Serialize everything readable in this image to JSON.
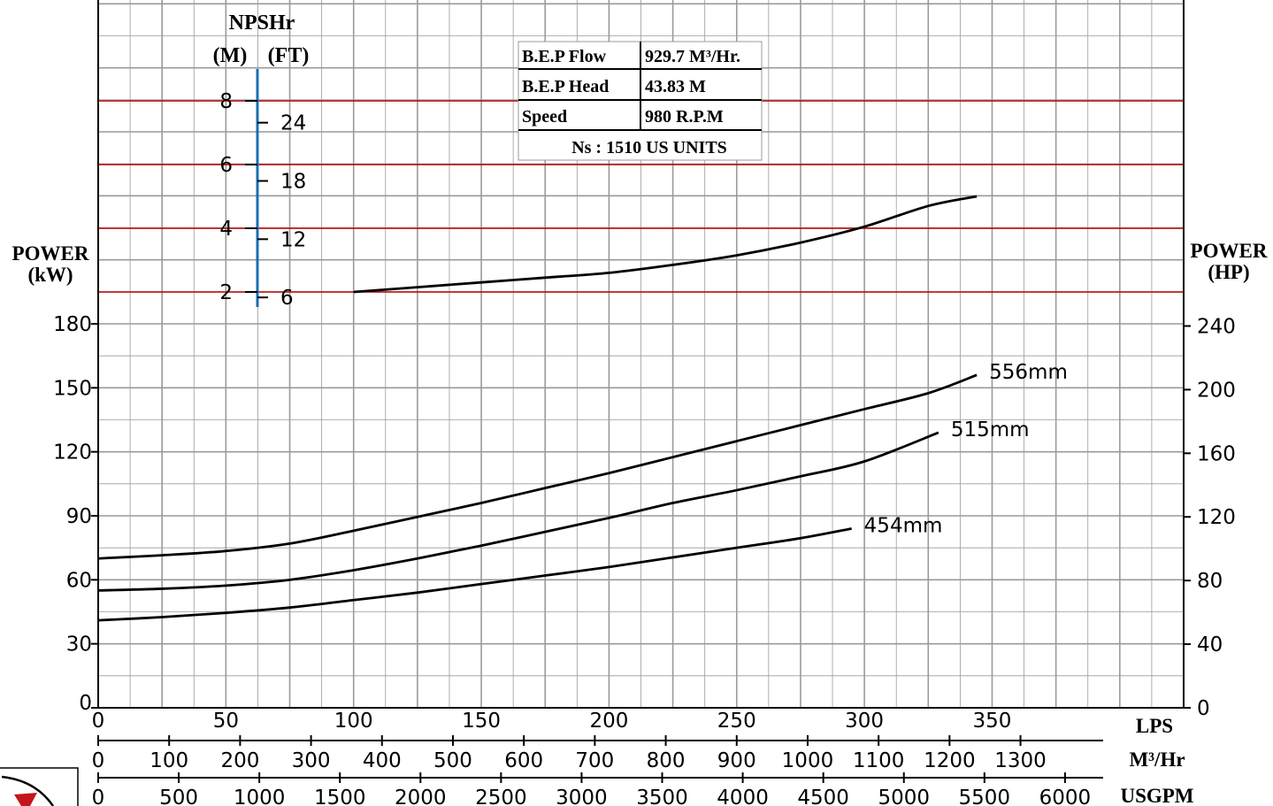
{
  "chart_data": {
    "type": "line",
    "x_unit": "LPS",
    "x_ticks": [
      0,
      50,
      100,
      150,
      200,
      250,
      300,
      350
    ],
    "xlim": [
      0,
      425
    ],
    "y_left_label": [
      "POWER",
      "(kW)"
    ],
    "y_left_ticks": [
      0,
      30,
      60,
      90,
      120,
      150,
      180
    ],
    "y_right_label": [
      "POWER",
      "(HP)"
    ],
    "y_right_ticks": [
      0,
      40,
      80,
      120,
      160,
      200,
      240
    ],
    "ylim_kw": [
      0,
      180
    ],
    "grid": true,
    "series": [
      {
        "name": "556mm",
        "x": [
          0,
          25,
          50,
          75,
          100,
          125,
          150,
          175,
          200,
          225,
          250,
          275,
          300,
          325,
          344
        ],
        "values": [
          70,
          71.5,
          73.5,
          77,
          83,
          89.5,
          96,
          103,
          110,
          117.5,
          125,
          132.5,
          140,
          147.5,
          156
        ]
      },
      {
        "name": "515mm",
        "x": [
          0,
          25,
          50,
          75,
          100,
          125,
          150,
          175,
          200,
          225,
          250,
          275,
          300,
          329
        ],
        "values": [
          55,
          55.8,
          57.3,
          60,
          64.5,
          70,
          76,
          82.5,
          89,
          96,
          102,
          108.5,
          115.5,
          129
        ]
      },
      {
        "name": "454mm",
        "x": [
          0,
          25,
          50,
          75,
          100,
          125,
          150,
          175,
          200,
          225,
          250,
          275,
          295
        ],
        "values": [
          41,
          42.5,
          44.5,
          47,
          50.5,
          54,
          58,
          62,
          66,
          70.5,
          75,
          79.5,
          84
        ]
      }
    ],
    "npshr": {
      "title": "NPSHr",
      "units": [
        "(M)",
        "(FT)"
      ],
      "m_ticks": [
        2,
        4,
        6,
        8
      ],
      "ft_ticks": [
        6,
        12,
        18,
        24
      ],
      "curve": {
        "x": [
          100,
          125,
          150,
          175,
          200,
          225,
          250,
          275,
          300,
          325,
          344
        ],
        "m": [
          2.0,
          2.15,
          2.3,
          2.45,
          2.6,
          2.85,
          3.15,
          3.55,
          4.05,
          4.7,
          5.0
        ]
      }
    },
    "bep_table": {
      "rows": [
        [
          "B.E.P Flow",
          "929.7 M³/Hr."
        ],
        [
          "B.E.P Head",
          "43.83 M"
        ],
        [
          "Speed",
          "980 R.P.M"
        ]
      ],
      "footer": "Ns : 1510 US UNITS"
    },
    "secondary_axes": [
      {
        "unit": "M³/Hr",
        "ticks": [
          0,
          100,
          200,
          300,
          400,
          500,
          600,
          700,
          800,
          900,
          1000,
          1100,
          1200,
          1300
        ]
      },
      {
        "unit": "USGPM",
        "ticks": [
          0,
          500,
          1000,
          1500,
          2000,
          2500,
          3000,
          3500,
          4000,
          4500,
          5000,
          5500,
          6000
        ]
      }
    ],
    "colors": {
      "grid": "#9a9a9a",
      "npsh_grid": "#b00000",
      "npsh_axis": "#1a6fb3",
      "curve": "#000000"
    }
  }
}
